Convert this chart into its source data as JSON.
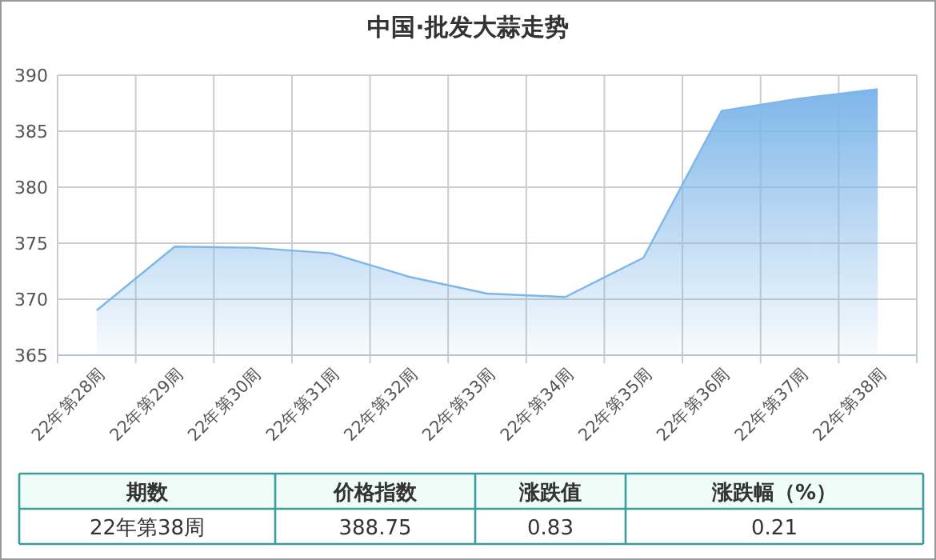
{
  "chart_data": {
    "type": "area",
    "title": "中国·批发大蒜走势",
    "categories": [
      "22年第28周",
      "22年第29周",
      "22年第30周",
      "22年第31周",
      "22年第32周",
      "22年第33周",
      "22年第34周",
      "22年第35周",
      "22年第36周",
      "22年第37周",
      "22年第38周"
    ],
    "series": [
      {
        "color": "#7eb6ea",
        "values": [
          369.0,
          374.7,
          374.6,
          374.1,
          372.0,
          370.5,
          370.2,
          373.7,
          386.8,
          387.92,
          388.75
        ]
      }
    ],
    "ylim": [
      365,
      390
    ],
    "yticks": [
      365,
      370,
      375,
      380,
      385,
      390
    ],
    "grid": true,
    "annotations": [
      "期数",
      "价格指数",
      "涨跌值",
      "涨跌幅（%）",
      "22年第38周",
      "388.75",
      "0.83",
      "0.21"
    ]
  }
}
